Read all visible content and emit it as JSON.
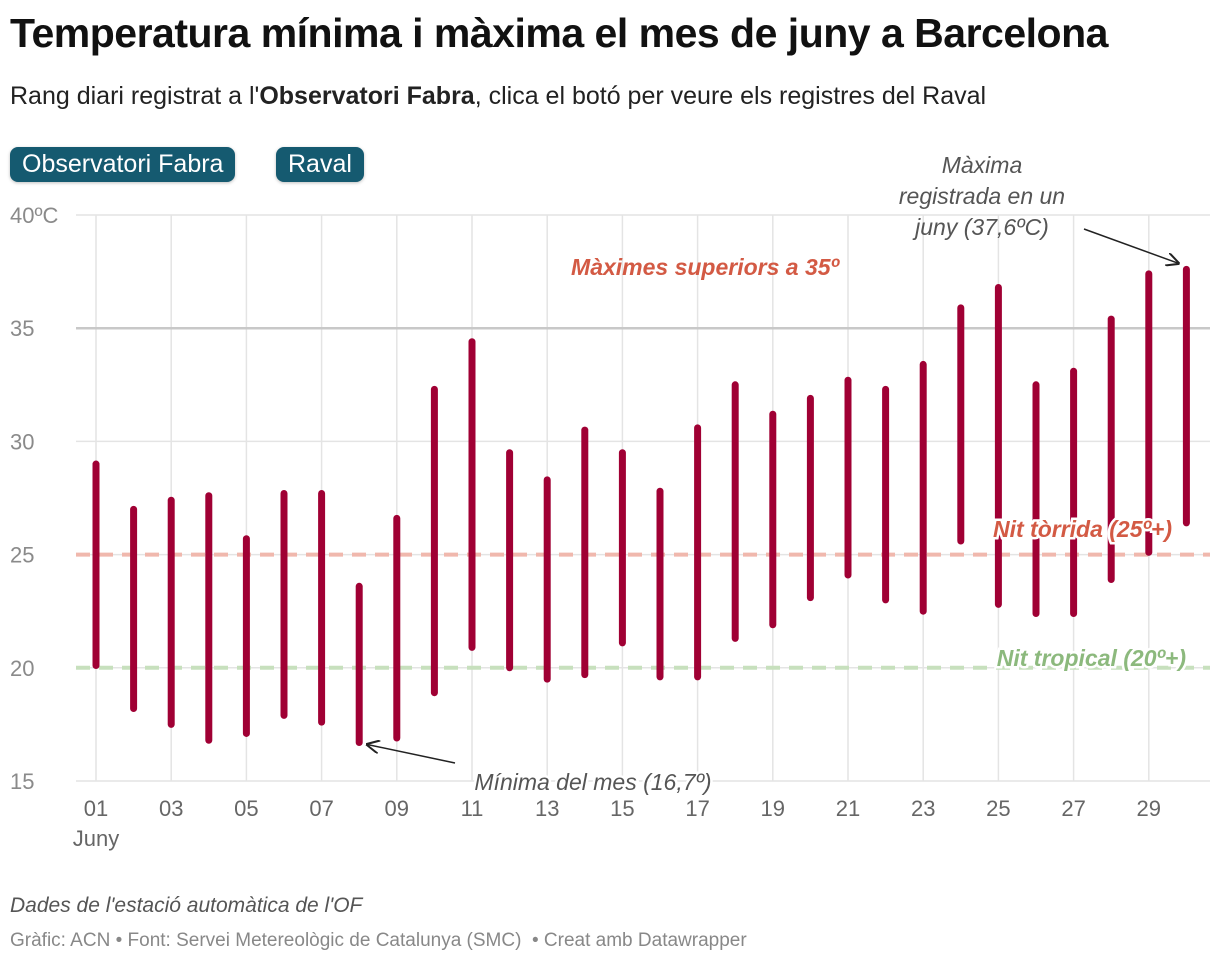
{
  "title": "Temperatura mínima i màxima el mes de juny a Barcelona",
  "subtitle": {
    "before": "Rang diari registrat a l'",
    "bold": "Observatori Fabra",
    "after": ", clica el botó per veure els registres del Raval"
  },
  "buttons": {
    "fabra": "Observatori Fabra",
    "raval": "Raval"
  },
  "notes": "Dades de l'estació automàtica de l'OF",
  "byline": {
    "chart": "Gràfic: ACN",
    "source": "Font: Servei Metereològic de Catalunya (SMC)",
    "tool": "Creat amb Datawrapper"
  },
  "colors": {
    "bar": "#a00034",
    "torrida": "#d35a44",
    "torrida_line": "#f0b8ad",
    "tropical": "#8cb97d",
    "tropical_line": "#c7e0bd",
    "grid": "#e4e4e4",
    "line35": "#c8c8c8",
    "axis_text": "#8a8a8a",
    "annotation": "#555555",
    "button_bg": "#155a70"
  },
  "chart_data": {
    "type": "range-bar",
    "xlabel": "",
    "ylabel": "",
    "ylim": [
      15,
      40
    ],
    "y_ticks": [
      {
        "value": 40,
        "label": "40ºC"
      },
      {
        "value": 35,
        "label": "35"
      },
      {
        "value": 30,
        "label": "30"
      },
      {
        "value": 25,
        "label": "25"
      },
      {
        "value": 20,
        "label": "20"
      },
      {
        "value": 15,
        "label": "15"
      }
    ],
    "x_ticks": [
      "01",
      "03",
      "05",
      "07",
      "09",
      "11",
      "13",
      "15",
      "17",
      "19",
      "21",
      "23",
      "25",
      "27",
      "29"
    ],
    "x_month_label": "Juny",
    "days": [
      1,
      2,
      3,
      4,
      5,
      6,
      7,
      8,
      9,
      10,
      11,
      12,
      13,
      14,
      15,
      16,
      17,
      18,
      19,
      20,
      21,
      22,
      23,
      24,
      25,
      26,
      27,
      28,
      29,
      30
    ],
    "min": [
      20.1,
      18.2,
      17.5,
      16.8,
      17.1,
      17.9,
      17.6,
      16.7,
      16.9,
      18.9,
      20.9,
      20.0,
      19.5,
      19.7,
      21.1,
      19.6,
      19.6,
      21.3,
      21.9,
      23.1,
      24.1,
      23.0,
      22.5,
      25.6,
      22.8,
      22.4,
      22.4,
      23.9,
      25.1,
      26.4
    ],
    "max": [
      29.0,
      27.0,
      27.4,
      27.6,
      25.7,
      27.7,
      27.7,
      23.6,
      26.6,
      32.3,
      34.4,
      29.5,
      28.3,
      30.5,
      29.5,
      27.8,
      30.6,
      32.5,
      31.2,
      31.9,
      32.7,
      32.3,
      33.4,
      35.9,
      36.8,
      32.5,
      33.1,
      35.4,
      37.4,
      37.6
    ],
    "reference_lines": [
      {
        "value": 35,
        "label": "Màximes superiors a 35º",
        "style": "solid"
      },
      {
        "value": 25,
        "label": "Nit tòrrida (25º+)",
        "style": "dashed"
      },
      {
        "value": 20,
        "label": "Nit tropical (20º+)",
        "style": "dashed"
      }
    ],
    "annotations": [
      {
        "lines": [
          "Màxima",
          "registrada en un",
          "juny (37,6ºC)"
        ],
        "day": 30,
        "value": 37.6
      },
      {
        "lines": [
          "Mínima del mes (16,7º)"
        ],
        "day": 8,
        "value": 16.7
      }
    ]
  }
}
